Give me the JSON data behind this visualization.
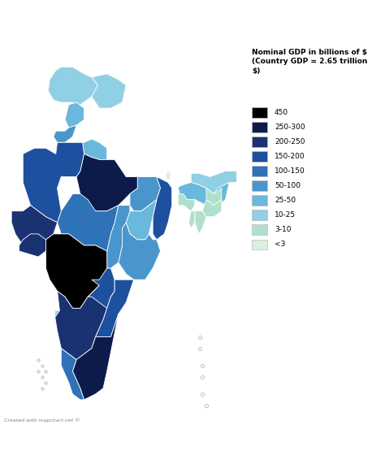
{
  "title": "Nominal GDP in billions of $\n(Country GDP = 2.65 trillion\n$)",
  "legend_entries": [
    {
      "label": "450",
      "color": "#000000"
    },
    {
      "label": "250-300",
      "color": "#0d1b4b"
    },
    {
      "label": "200-250",
      "color": "#1a3272"
    },
    {
      "label": "150-200",
      "color": "#1e50a0"
    },
    {
      "label": "100-150",
      "color": "#2e72b8"
    },
    {
      "label": "50-100",
      "color": "#4a96cc"
    },
    {
      "label": "25-50",
      "color": "#6ab8dc"
    },
    {
      "label": "10-25",
      "color": "#90d0e4"
    },
    {
      "label": "3-10",
      "color": "#b0e0cc"
    },
    {
      "label": "<3",
      "color": "#daf0dc"
    }
  ],
  "footer": "Created with mapchart.net ©",
  "background_color": "#ffffff",
  "legend_title_fontsize": 6.5,
  "legend_label_fontsize": 6.5,
  "footer_fontsize": 4.5,
  "state_gdp": {
    "Jammu and Kashmir": "10-25",
    "Ladakh": "10-25",
    "Himachal Pradesh": "25-50",
    "Punjab": "50-100",
    "Uttarakhand": "25-50",
    "Haryana": "50-100",
    "Delhi": "100-150",
    "Uttar Pradesh": "250-300",
    "Bihar": "50-100",
    "Sikkim": "<3",
    "Arunachal Pradesh": "10-25",
    "Nagaland": "3-10",
    "Manipur": "3-10",
    "Mizoram": "3-10",
    "Tripura": "3-10",
    "Meghalaya": "3-10",
    "Assam": "25-50",
    "West Bengal": "150-200",
    "Jharkhand": "25-50",
    "Odisha": "50-100",
    "Chhattisgarh": "50-100",
    "Madhya Pradesh": "100-150",
    "Rajasthan": "150-200",
    "Gujarat": "200-250",
    "Maharashtra": "450",
    "Goa": "10-25",
    "Karnataka": "200-250",
    "Telangana": "150-200",
    "Andhra Pradesh": "150-200",
    "Tamil Nadu": "250-300",
    "Kerala": "100-150",
    "Andaman and Nicobar": "<3",
    "Lakshadweep": "<3",
    "Dadra and Nagar Haveli": "<3",
    "Daman and Diu": "<3",
    "Puducherry": "<3",
    "Chandigarh": "<3"
  }
}
